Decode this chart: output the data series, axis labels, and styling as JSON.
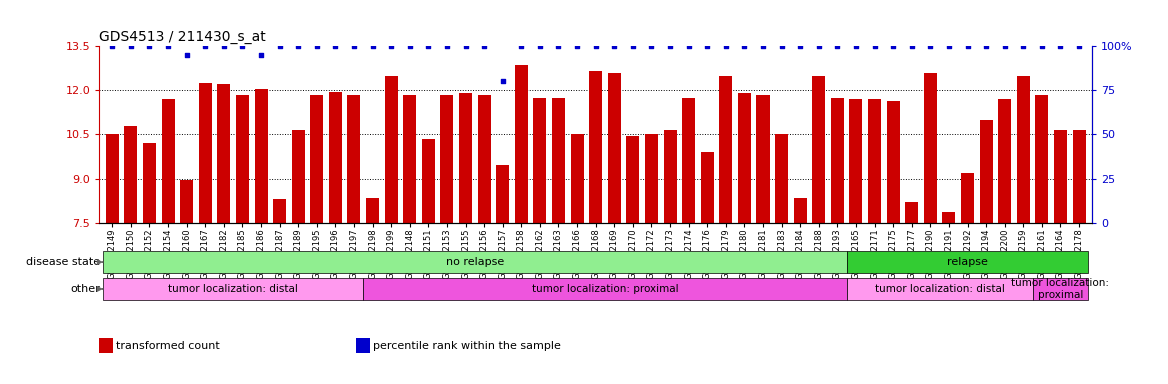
{
  "title": "GDS4513 / 211430_s_at",
  "samples": [
    "GSM452149",
    "GSM452150",
    "GSM452152",
    "GSM452154",
    "GSM452160",
    "GSM452167",
    "GSM452182",
    "GSM452185",
    "GSM452186",
    "GSM452187",
    "GSM452189",
    "GSM452195",
    "GSM452196",
    "GSM452197",
    "GSM452198",
    "GSM452199",
    "GSM452148",
    "GSM452151",
    "GSM452153",
    "GSM452155",
    "GSM452156",
    "GSM452157",
    "GSM452158",
    "GSM452162",
    "GSM452163",
    "GSM452166",
    "GSM452168",
    "GSM452169",
    "GSM452170",
    "GSM452172",
    "GSM452173",
    "GSM452174",
    "GSM452176",
    "GSM452179",
    "GSM452180",
    "GSM452181",
    "GSM452183",
    "GSM452184",
    "GSM452188",
    "GSM452193",
    "GSM452165",
    "GSM452171",
    "GSM452175",
    "GSM452177",
    "GSM452190",
    "GSM452191",
    "GSM452192",
    "GSM452194",
    "GSM452200",
    "GSM452159",
    "GSM452161",
    "GSM452164",
    "GSM452178"
  ],
  "bar_values": [
    10.5,
    10.8,
    10.2,
    11.7,
    8.95,
    12.25,
    12.2,
    11.85,
    12.05,
    8.3,
    10.65,
    11.85,
    11.95,
    11.85,
    8.35,
    12.5,
    11.85,
    10.35,
    11.85,
    11.9,
    11.85,
    9.45,
    12.85,
    11.75,
    11.75,
    10.5,
    12.65,
    12.6,
    10.45,
    10.5,
    10.65,
    11.75,
    9.9,
    12.5,
    11.9,
    11.85,
    10.5,
    8.35,
    12.5,
    11.75,
    11.7,
    11.7,
    11.65,
    8.2,
    12.6,
    7.85,
    9.2,
    11.0,
    11.7,
    12.5,
    11.85,
    10.65,
    10.65
  ],
  "percentile_values": [
    100,
    100,
    100,
    100,
    95,
    100,
    100,
    100,
    95,
    100,
    100,
    100,
    100,
    100,
    100,
    100,
    100,
    100,
    100,
    100,
    100,
    80,
    100,
    100,
    100,
    100,
    100,
    100,
    100,
    100,
    100,
    100,
    100,
    100,
    100,
    100,
    100,
    100,
    100,
    100,
    100,
    100,
    100,
    100,
    100,
    100,
    100,
    100,
    100,
    100,
    100,
    100,
    100
  ],
  "ylim": [
    7.5,
    13.5
  ],
  "yticks": [
    7.5,
    9.0,
    10.5,
    12.0,
    13.5
  ],
  "bar_color": "#CC0000",
  "percentile_color": "#0000CC",
  "disease_state_segments": [
    {
      "label": "",
      "start": 0,
      "end": 40,
      "color": "#90EE90"
    },
    {
      "label": "no relapse",
      "start": 0,
      "end": 40,
      "color": "#90EE90"
    },
    {
      "label": "relapse",
      "start": 40,
      "end": 53,
      "color": "#33CC33"
    }
  ],
  "other_segments": [
    {
      "label": "tumor localization: distal",
      "start": 0,
      "end": 14,
      "color": "#FF99EE"
    },
    {
      "label": "tumor localization: proximal",
      "start": 14,
      "end": 40,
      "color": "#EE55DD"
    },
    {
      "label": "tumor localization: distal",
      "start": 40,
      "end": 50,
      "color": "#FF99EE"
    },
    {
      "label": "tumor localization:\nproximal",
      "start": 50,
      "end": 53,
      "color": "#EE55DD"
    }
  ],
  "legend_items": [
    {
      "label": "transformed count",
      "color": "#CC0000"
    },
    {
      "label": "percentile rank within the sample",
      "color": "#0000CC"
    }
  ],
  "grid_lines": [
    9.0,
    10.5,
    12.0
  ],
  "right_yticks": [
    0,
    25,
    50,
    75,
    100
  ],
  "right_yticklabels": [
    "0",
    "25",
    "50",
    "75",
    "100%"
  ]
}
